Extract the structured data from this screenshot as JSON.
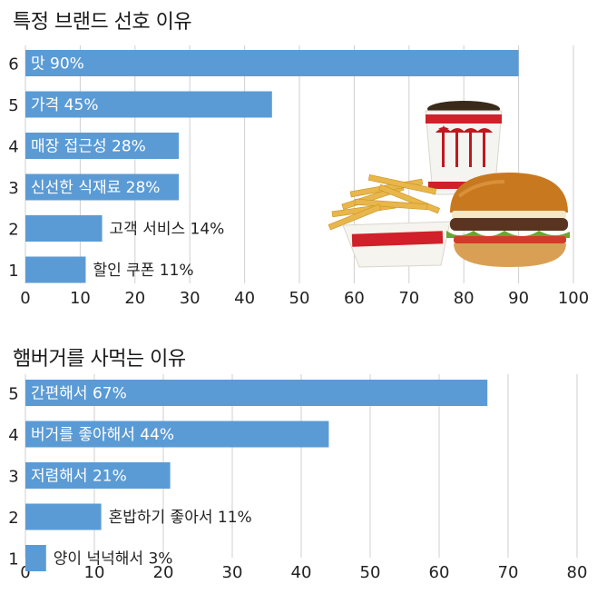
{
  "chart_data": [
    {
      "type": "bar",
      "orientation": "horizontal",
      "title": "특정 브랜드 선호 이유",
      "categories": [
        "6",
        "5",
        "4",
        "3",
        "2",
        "1"
      ],
      "values": [
        90,
        45,
        28,
        28,
        14,
        11
      ],
      "bar_labels": [
        "맛 90%",
        "가격 45%",
        "매장 접근성 28%",
        "신선한 식재료 28%",
        "고객 서비스 14%",
        "할인 쿠폰 11%"
      ],
      "xlim": [
        0,
        100
      ],
      "xticks": [
        "0",
        "10",
        "20",
        "30",
        "40",
        "50",
        "60",
        "70",
        "80",
        "90",
        "100"
      ],
      "grid": true
    },
    {
      "type": "bar",
      "orientation": "horizontal",
      "title": "햄버거를 사먹는 이유",
      "categories": [
        "5",
        "4",
        "3",
        "2",
        "1"
      ],
      "values": [
        67,
        44,
        21,
        11,
        3
      ],
      "bar_labels": [
        "간편해서 67%",
        "버거를 좋아해서 44%",
        "저렴해서 21%",
        "혼밥하기 좋아서 11%",
        "양이 넉넉해서 3%"
      ],
      "xlim": [
        0,
        80
      ],
      "xticks": [
        "0",
        "10",
        "20",
        "30",
        "40",
        "50",
        "60",
        "70",
        "80"
      ],
      "grid": true
    }
  ],
  "colors": {
    "bar": "#5b9bd5",
    "grid": "#cfcfcf",
    "label_inside": "#ffffff",
    "label_outside": "#222222"
  },
  "illustration": "burger-fries-soda-image"
}
